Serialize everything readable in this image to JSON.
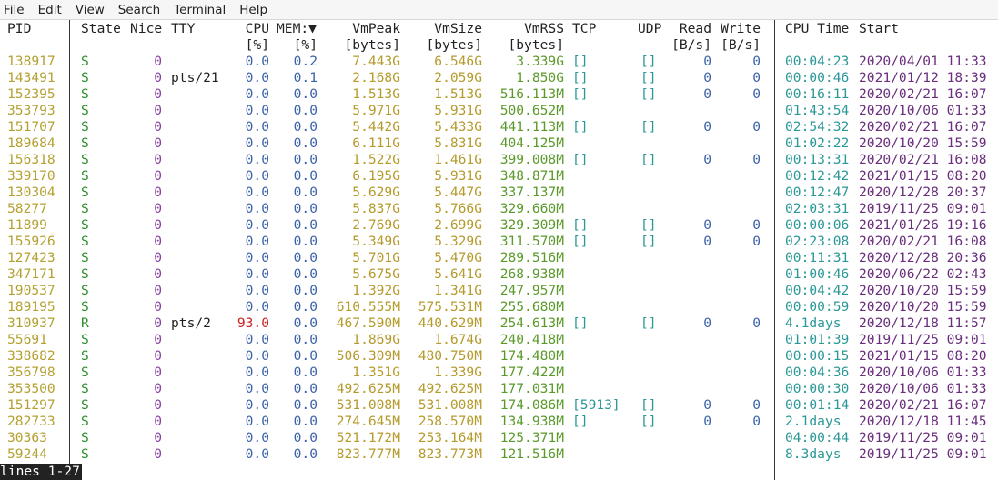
{
  "menu": [
    "File",
    "Edit",
    "View",
    "Search",
    "Terminal",
    "Help"
  ],
  "header": {
    "pid": "PID",
    "state": "State",
    "nice": "Nice",
    "tty": "TTY",
    "cpu": "CPU",
    "cpu_unit": "[%]",
    "mem": "MEM:▼",
    "mem_unit": "[%]",
    "vmpeak": "VmPeak",
    "vmpeak_unit": "[bytes]",
    "vmsize": "VmSize",
    "vmsize_unit": "[bytes]",
    "vmrss": "VmRSS",
    "vmrss_unit": "[bytes]",
    "tcp": "TCP",
    "udp": "UDP",
    "read": "Read",
    "read_unit": "[B/s]",
    "write": "Write",
    "write_unit": "[B/s]",
    "cputime": "CPU Time",
    "start": "Start"
  },
  "colors": {
    "state_running": "#2a8f2a",
    "state_sleeping": "#2a8f2a",
    "cpu_high": "#cc2222",
    "accent_pid": "#b5a132"
  },
  "rows": [
    {
      "pid": "138917",
      "state": "S",
      "nice": "0",
      "tty": "",
      "cpu": "0.0",
      "mem": "0.2",
      "vmpeak": "7.443G",
      "vmsize": "6.546G",
      "vmrss": "3.339G",
      "tcp": "[]",
      "udp": "[]",
      "read": "0",
      "write": "0",
      "time": "00:04:23",
      "start": "2020/04/01 11:33"
    },
    {
      "pid": "143491",
      "state": "S",
      "nice": "0",
      "tty": "pts/21",
      "cpu": "0.0",
      "mem": "0.1",
      "vmpeak": "2.168G",
      "vmsize": "2.059G",
      "vmrss": "1.850G",
      "tcp": "[]",
      "udp": "[]",
      "read": "0",
      "write": "0",
      "time": "00:00:46",
      "start": "2021/01/12 18:39"
    },
    {
      "pid": "152395",
      "state": "S",
      "nice": "0",
      "tty": "",
      "cpu": "0.0",
      "mem": "0.0",
      "vmpeak": "1.513G",
      "vmsize": "1.513G",
      "vmrss": "516.113M",
      "tcp": "[]",
      "udp": "[]",
      "read": "0",
      "write": "0",
      "time": "00:16:11",
      "start": "2020/02/21 16:07"
    },
    {
      "pid": "353793",
      "state": "S",
      "nice": "0",
      "tty": "",
      "cpu": "0.0",
      "mem": "0.0",
      "vmpeak": "5.971G",
      "vmsize": "5.931G",
      "vmrss": "500.652M",
      "tcp": "",
      "udp": "",
      "read": "",
      "write": "",
      "time": "01:43:54",
      "start": "2020/10/06 01:33"
    },
    {
      "pid": "151707",
      "state": "S",
      "nice": "0",
      "tty": "",
      "cpu": "0.0",
      "mem": "0.0",
      "vmpeak": "5.442G",
      "vmsize": "5.433G",
      "vmrss": "441.113M",
      "tcp": "[]",
      "udp": "[]",
      "read": "0",
      "write": "0",
      "time": "02:54:32",
      "start": "2020/02/21 16:07"
    },
    {
      "pid": "189684",
      "state": "S",
      "nice": "0",
      "tty": "",
      "cpu": "0.0",
      "mem": "0.0",
      "vmpeak": "6.111G",
      "vmsize": "5.831G",
      "vmrss": "404.125M",
      "tcp": "",
      "udp": "",
      "read": "",
      "write": "",
      "time": "01:02:22",
      "start": "2020/10/20 15:59"
    },
    {
      "pid": "156318",
      "state": "S",
      "nice": "0",
      "tty": "",
      "cpu": "0.0",
      "mem": "0.0",
      "vmpeak": "1.522G",
      "vmsize": "1.461G",
      "vmrss": "399.008M",
      "tcp": "[]",
      "udp": "[]",
      "read": "0",
      "write": "0",
      "time": "00:13:31",
      "start": "2020/02/21 16:08"
    },
    {
      "pid": "339170",
      "state": "S",
      "nice": "0",
      "tty": "",
      "cpu": "0.0",
      "mem": "0.0",
      "vmpeak": "6.195G",
      "vmsize": "5.931G",
      "vmrss": "348.871M",
      "tcp": "",
      "udp": "",
      "read": "",
      "write": "",
      "time": "00:12:42",
      "start": "2021/01/15 08:20"
    },
    {
      "pid": "130304",
      "state": "S",
      "nice": "0",
      "tty": "",
      "cpu": "0.0",
      "mem": "0.0",
      "vmpeak": "5.629G",
      "vmsize": "5.447G",
      "vmrss": "337.137M",
      "tcp": "",
      "udp": "",
      "read": "",
      "write": "",
      "time": "00:12:47",
      "start": "2020/12/28 20:37"
    },
    {
      "pid": "58277",
      "state": "S",
      "nice": "0",
      "tty": "",
      "cpu": "0.0",
      "mem": "0.0",
      "vmpeak": "5.837G",
      "vmsize": "5.766G",
      "vmrss": "329.660M",
      "tcp": "",
      "udp": "",
      "read": "",
      "write": "",
      "time": "02:03:31",
      "start": "2019/11/25 09:01"
    },
    {
      "pid": "11899",
      "state": "S",
      "nice": "0",
      "tty": "",
      "cpu": "0.0",
      "mem": "0.0",
      "vmpeak": "2.769G",
      "vmsize": "2.699G",
      "vmrss": "329.309M",
      "tcp": "[]",
      "udp": "[]",
      "read": "0",
      "write": "0",
      "time": "00:00:06",
      "start": "2021/01/26 19:16"
    },
    {
      "pid": "155926",
      "state": "S",
      "nice": "0",
      "tty": "",
      "cpu": "0.0",
      "mem": "0.0",
      "vmpeak": "5.349G",
      "vmsize": "5.329G",
      "vmrss": "311.570M",
      "tcp": "[]",
      "udp": "[]",
      "read": "0",
      "write": "0",
      "time": "02:23:08",
      "start": "2020/02/21 16:08"
    },
    {
      "pid": "127423",
      "state": "S",
      "nice": "0",
      "tty": "",
      "cpu": "0.0",
      "mem": "0.0",
      "vmpeak": "5.701G",
      "vmsize": "5.470G",
      "vmrss": "289.516M",
      "tcp": "",
      "udp": "",
      "read": "",
      "write": "",
      "time": "00:11:31",
      "start": "2020/12/28 20:36"
    },
    {
      "pid": "347171",
      "state": "S",
      "nice": "0",
      "tty": "",
      "cpu": "0.0",
      "mem": "0.0",
      "vmpeak": "5.675G",
      "vmsize": "5.641G",
      "vmrss": "268.938M",
      "tcp": "",
      "udp": "",
      "read": "",
      "write": "",
      "time": "01:00:46",
      "start": "2020/06/22 02:43"
    },
    {
      "pid": "190537",
      "state": "S",
      "nice": "0",
      "tty": "",
      "cpu": "0.0",
      "mem": "0.0",
      "vmpeak": "1.392G",
      "vmsize": "1.341G",
      "vmrss": "247.957M",
      "tcp": "",
      "udp": "",
      "read": "",
      "write": "",
      "time": "00:04:42",
      "start": "2020/10/20 15:59"
    },
    {
      "pid": "189195",
      "state": "S",
      "nice": "0",
      "tty": "",
      "cpu": "0.0",
      "mem": "0.0",
      "vmpeak": "610.555M",
      "vmsize": "575.531M",
      "vmrss": "255.680M",
      "tcp": "",
      "udp": "",
      "read": "",
      "write": "",
      "time": "00:00:59",
      "start": "2020/10/20 15:59"
    },
    {
      "pid": "310937",
      "state": "R",
      "nice": "0",
      "tty": "pts/2",
      "cpu": "93.0",
      "mem": "0.0",
      "vmpeak": "467.590M",
      "vmsize": "440.629M",
      "vmrss": "254.613M",
      "tcp": "[]",
      "udp": "[]",
      "read": "0",
      "write": "0",
      "time": "4.1days",
      "start": "2020/12/18 11:57"
    },
    {
      "pid": "55691",
      "state": "S",
      "nice": "0",
      "tty": "",
      "cpu": "0.0",
      "mem": "0.0",
      "vmpeak": "1.869G",
      "vmsize": "1.674G",
      "vmrss": "240.418M",
      "tcp": "",
      "udp": "",
      "read": "",
      "write": "",
      "time": "01:01:39",
      "start": "2019/11/25 09:01"
    },
    {
      "pid": "338682",
      "state": "S",
      "nice": "0",
      "tty": "",
      "cpu": "0.0",
      "mem": "0.0",
      "vmpeak": "506.309M",
      "vmsize": "480.750M",
      "vmrss": "174.480M",
      "tcp": "",
      "udp": "",
      "read": "",
      "write": "",
      "time": "00:00:15",
      "start": "2021/01/15 08:20"
    },
    {
      "pid": "356798",
      "state": "S",
      "nice": "0",
      "tty": "",
      "cpu": "0.0",
      "mem": "0.0",
      "vmpeak": "1.351G",
      "vmsize": "1.339G",
      "vmrss": "177.422M",
      "tcp": "",
      "udp": "",
      "read": "",
      "write": "",
      "time": "00:04:36",
      "start": "2020/10/06 01:33"
    },
    {
      "pid": "353500",
      "state": "S",
      "nice": "0",
      "tty": "",
      "cpu": "0.0",
      "mem": "0.0",
      "vmpeak": "492.625M",
      "vmsize": "492.625M",
      "vmrss": "177.031M",
      "tcp": "",
      "udp": "",
      "read": "",
      "write": "",
      "time": "00:00:30",
      "start": "2020/10/06 01:33"
    },
    {
      "pid": "151297",
      "state": "S",
      "nice": "0",
      "tty": "",
      "cpu": "0.0",
      "mem": "0.0",
      "vmpeak": "531.008M",
      "vmsize": "531.008M",
      "vmrss": "174.086M",
      "tcp": "[5913]",
      "udp": "[]",
      "read": "0",
      "write": "0",
      "time": "00:01:14",
      "start": "2020/02/21 16:07"
    },
    {
      "pid": "282733",
      "state": "S",
      "nice": "0",
      "tty": "",
      "cpu": "0.0",
      "mem": "0.0",
      "vmpeak": "274.645M",
      "vmsize": "258.570M",
      "vmrss": "134.938M",
      "tcp": "[]",
      "udp": "[]",
      "read": "0",
      "write": "0",
      "time": "2.1days",
      "start": "2020/12/18 11:45"
    },
    {
      "pid": "30363",
      "state": "S",
      "nice": "0",
      "tty": "",
      "cpu": "0.0",
      "mem": "0.0",
      "vmpeak": "521.172M",
      "vmsize": "253.164M",
      "vmrss": "125.371M",
      "tcp": "",
      "udp": "",
      "read": "",
      "write": "",
      "time": "04:00:44",
      "start": "2019/11/25 09:01"
    },
    {
      "pid": "59244",
      "state": "S",
      "nice": "0",
      "tty": "",
      "cpu": "0.0",
      "mem": "0.0",
      "vmpeak": "823.777M",
      "vmsize": "823.773M",
      "vmrss": "121.516M",
      "tcp": "",
      "udp": "",
      "read": "",
      "write": "",
      "time": "8.3days",
      "start": "2019/11/25 09:01"
    }
  ],
  "status": "lines 1-27"
}
